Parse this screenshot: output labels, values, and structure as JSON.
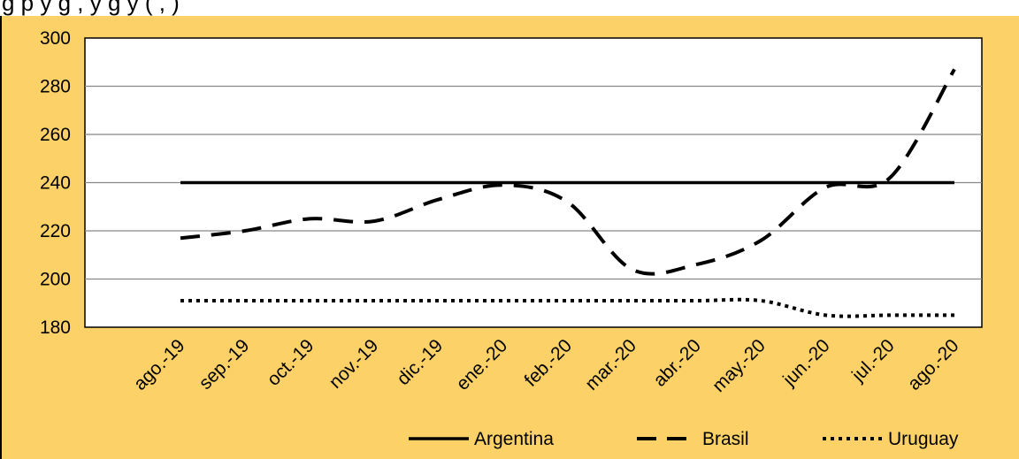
{
  "title": "",
  "title_fragment": "g                                      p   y   g    ,          y    g   y (      ,            )",
  "chart_data": {
    "type": "line",
    "title": "",
    "xlabel": "",
    "ylabel": "",
    "categories": [
      "ago.-19",
      "sep.-19",
      "oct.-19",
      "nov.-19",
      "dic.-19",
      "ene.-20",
      "feb.-20",
      "mar.-20",
      "abr.-20",
      "may.-20",
      "jun.-20",
      "jul.-20",
      "ago.-20"
    ],
    "ylim": [
      180,
      300
    ],
    "yticks": [
      180,
      200,
      220,
      240,
      260,
      280,
      300
    ],
    "grid": true,
    "legend": "bottom-right",
    "background": "#fcd167",
    "series": [
      {
        "name": "Argentina",
        "style": "solid",
        "color": "#000000",
        "values": [
          240,
          240,
          240,
          240,
          240,
          240,
          240,
          240,
          240,
          240,
          240,
          240,
          240
        ]
      },
      {
        "name": "Brasil",
        "style": "dashed",
        "color": "#000000",
        "values": [
          217,
          220,
          225,
          224,
          233,
          239,
          232,
          204,
          206,
          216,
          238,
          242,
          287
        ]
      },
      {
        "name": "Uruguay",
        "style": "dotted",
        "color": "#000000",
        "values": [
          191,
          191,
          191,
          191,
          191,
          191,
          191,
          191,
          191,
          191,
          185,
          185,
          185
        ]
      }
    ]
  }
}
